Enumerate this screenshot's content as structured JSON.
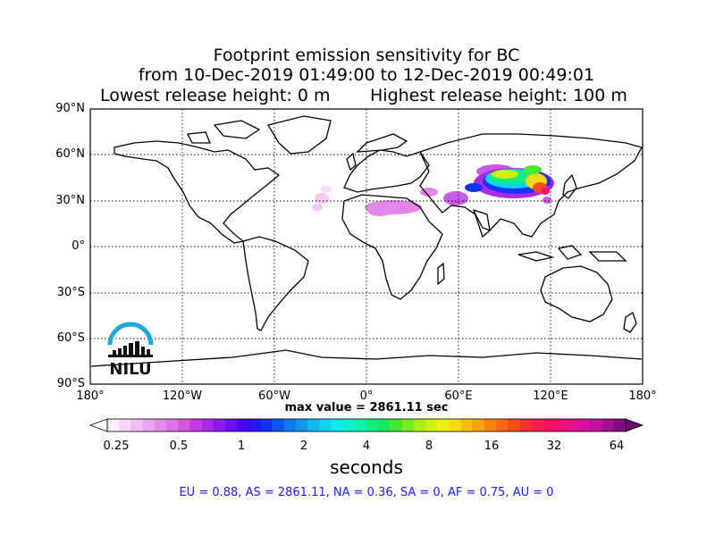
{
  "title": {
    "line1": "Footprint emission sensitivity for BC",
    "line2": "from 10-Dec-2019 01:49:00 to 12-Dec-2019 00:49:01",
    "lowest": "Lowest release height: 0 m",
    "highest": "Highest release height: 100 m"
  },
  "axes": {
    "lat_labels": [
      "90°N",
      "60°N",
      "30°N",
      "0°",
      "30°S",
      "60°S",
      "90°S"
    ],
    "lon_labels": [
      "180°",
      "120°W",
      "60°W",
      "0°",
      "60°E",
      "120°E",
      "180°"
    ]
  },
  "max_value_text": "max value = 2861.11 sec",
  "colorbar": {
    "ticks": [
      "0.25",
      "0.5",
      "1",
      "2",
      "4",
      "8",
      "16",
      "32",
      "64"
    ],
    "units": "seconds",
    "colors": [
      "#fdeefd",
      "#f7d6f8",
      "#f1bdf3",
      "#eba4ee",
      "#e68ae9",
      "#e070e4",
      "#d957de",
      "#c13de3",
      "#a82ae8",
      "#8c1aee",
      "#6d0ff4",
      "#4a08f8",
      "#2a14f8",
      "#1232f4",
      "#0f55f0",
      "#0f78ee",
      "#0f98ee",
      "#10b8f0",
      "#10d2f0",
      "#10e8ec",
      "#10f0d0",
      "#10f0aa",
      "#10ee80",
      "#18e858",
      "#48e830",
      "#78ec20",
      "#a6f016",
      "#ccf210",
      "#f0f010",
      "#f8d810",
      "#f8bc10",
      "#f8a010",
      "#f88410",
      "#f86810",
      "#f84c18",
      "#f83030",
      "#f81c48",
      "#f81060",
      "#f01078",
      "#e81090",
      "#d810a0",
      "#c010a0",
      "#a01090",
      "#801080"
    ]
  },
  "regions_text": "EU = 0.88,  AS = 2861.11,  NA = 0.36,  SA = 0,  AF = 0.75,  AU = 0",
  "logo": {
    "text": "NILU",
    "color": "#1ca8e0"
  }
}
